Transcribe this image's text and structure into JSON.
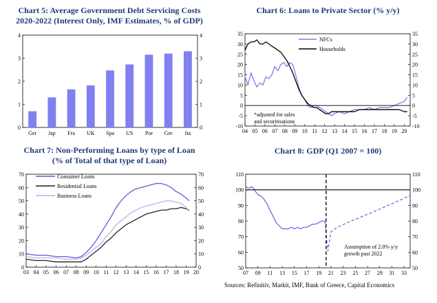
{
  "sources": "Sources: Refinitiv, Markit, IMF, Bank of Greece, Capital Economics",
  "chart_data": [
    {
      "id": "c5",
      "type": "bar",
      "title": "Chart 5: Average Government Debt Servicing Costs 2020-2022 (Interest Only, IMF Estimates, % of GDP)",
      "title_lines": [
        "Chart 5: Average Government Debt Servicing Costs",
        "2020-2022 (Interest Only, IMF Estimates, % of GDP)"
      ],
      "categories": [
        "Ger",
        "Jap",
        "Fra",
        "UK",
        "Spa",
        "US",
        "Por",
        "Gre",
        "Ita"
      ],
      "values": [
        0.7,
        1.3,
        1.65,
        1.82,
        2.47,
        2.73,
        3.15,
        3.2,
        3.3
      ],
      "ylim": [
        0,
        4
      ],
      "yticks": [
        0,
        1,
        2,
        3,
        4
      ],
      "color": "#8080f0"
    },
    {
      "id": "c6",
      "type": "line",
      "title": "Chart 6: Loans to Private Sector (% y/y)",
      "x_ticks": [
        "04",
        "05",
        "06",
        "07",
        "08",
        "09",
        "10",
        "11",
        "12",
        "13",
        "14",
        "15",
        "16",
        "17",
        "18",
        "19",
        "20"
      ],
      "xlim": [
        2004,
        2020.6
      ],
      "ylim": [
        -10,
        35
      ],
      "yticks": [
        -10,
        -5,
        0,
        5,
        10,
        15,
        20,
        25,
        30,
        35
      ],
      "legend": "top-right",
      "annotation": [
        "*adjusted for sales",
        "and securitisations"
      ],
      "series": [
        {
          "name": "NFCs",
          "color": "#7b7bf0",
          "x": [
            2004.0,
            2004.3,
            2004.6,
            2004.9,
            2005.2,
            2005.5,
            2005.8,
            2006.1,
            2006.4,
            2006.7,
            2007.0,
            2007.3,
            2007.6,
            2007.9,
            2008.2,
            2008.5,
            2008.8,
            2009.1,
            2009.4,
            2009.7,
            2010.0,
            2010.3,
            2010.6,
            2010.9,
            2011.2,
            2011.5,
            2011.8,
            2012.1,
            2012.4,
            2012.7,
            2013.0,
            2013.5,
            2014.0,
            2014.5,
            2015.0,
            2015.5,
            2016.0,
            2016.5,
            2017.0,
            2017.5,
            2018.0,
            2018.5,
            2019.0,
            2019.5,
            2020.0,
            2020.3
          ],
          "y": [
            14,
            10,
            16,
            12,
            9,
            11,
            10,
            14,
            13,
            15,
            19,
            17,
            20,
            21,
            19,
            21,
            20,
            15,
            9,
            5,
            3,
            0,
            -1,
            0,
            0,
            -1,
            -2,
            -3,
            -4,
            -5,
            -4,
            -3,
            -4,
            -3,
            -2,
            -2,
            -2,
            -1,
            -2,
            -1,
            -1,
            -1,
            0,
            1,
            2,
            4
          ]
        },
        {
          "name": "Households",
          "color": "#000000",
          "x": [
            2004.0,
            2004.3,
            2004.6,
            2004.9,
            2005.2,
            2005.5,
            2005.8,
            2006.1,
            2006.4,
            2006.7,
            2007.0,
            2007.3,
            2007.6,
            2007.9,
            2008.2,
            2008.5,
            2008.8,
            2009.1,
            2009.4,
            2009.7,
            2010.0,
            2010.3,
            2010.6,
            2010.9,
            2011.2,
            2011.5,
            2011.8,
            2012.1,
            2012.4,
            2012.7,
            2013.0,
            2013.5,
            2014.0,
            2014.5,
            2015.0,
            2015.5,
            2016.0,
            2016.5,
            2017.0,
            2017.5,
            2018.0,
            2018.5,
            2019.0,
            2019.5,
            2020.0,
            2020.3
          ],
          "y": [
            27,
            30,
            31,
            31,
            32,
            30,
            30,
            31,
            30,
            29,
            28,
            27,
            26,
            24,
            22,
            19,
            16,
            12,
            8,
            5,
            3,
            1,
            0,
            -1,
            -1,
            -2,
            -3,
            -4,
            -4,
            -3,
            -3,
            -3,
            -3,
            -3,
            -3,
            -2,
            -2,
            -2,
            -2,
            -2,
            -2,
            -2,
            -2,
            -2,
            -3,
            -3
          ]
        }
      ]
    },
    {
      "id": "c7",
      "type": "line",
      "title": "Chart 7: Non-Performing Loans by type of Loan (% of Total of that type of Loan)",
      "title_lines": [
        "Chart 7: Non-Performing Loans by type of Loan",
        "(% of Total of that type of Loan)"
      ],
      "x_ticks": [
        "03",
        "04",
        "05",
        "06",
        "07",
        "08",
        "09",
        "10",
        "11",
        "12",
        "13",
        "14",
        "15",
        "16",
        "17",
        "18",
        "19",
        "20"
      ],
      "xlim": [
        2003,
        2020
      ],
      "ylim": [
        0,
        70
      ],
      "yticks": [
        0,
        10,
        20,
        30,
        40,
        50,
        60,
        70
      ],
      "legend": "top-left",
      "series": [
        {
          "name": "Consumer Loans",
          "color": "#5c5cd6",
          "x": [
            2003,
            2004,
            2005,
            2006,
            2007,
            2008,
            2008.5,
            2009,
            2009.5,
            2010,
            2010.5,
            2011,
            2011.5,
            2012,
            2012.5,
            2013,
            2013.5,
            2014,
            2014.5,
            2015,
            2015.5,
            2016,
            2016.5,
            2017,
            2017.5,
            2018,
            2018.5,
            2019,
            2019.3
          ],
          "y": [
            10,
            9,
            9,
            8,
            8,
            7,
            8,
            11,
            15,
            20,
            26,
            32,
            38,
            45,
            50,
            54,
            57,
            59,
            60,
            61,
            62,
            63,
            63,
            62,
            60,
            57,
            55,
            52,
            50
          ]
        },
        {
          "name": "Residential Loans",
          "color": "#222222",
          "x": [
            2003,
            2004,
            2005,
            2006,
            2007,
            2008,
            2008.5,
            2009,
            2009.5,
            2010,
            2010.5,
            2011,
            2011.5,
            2012,
            2012.5,
            2013,
            2013.5,
            2014,
            2014.5,
            2015,
            2015.5,
            2016,
            2016.5,
            2017,
            2017.5,
            2018,
            2018.5,
            2019,
            2019.3
          ],
          "y": [
            6,
            5,
            5,
            4,
            4,
            4,
            4,
            6,
            9,
            12,
            15,
            19,
            22,
            26,
            29,
            32,
            34,
            36,
            38,
            40,
            41,
            42,
            43,
            43,
            44,
            44,
            45,
            44,
            43
          ]
        },
        {
          "name": "Business Loans",
          "color": "#b4b4ee",
          "x": [
            2003,
            2004,
            2005,
            2006,
            2007,
            2008,
            2008.5,
            2009,
            2009.5,
            2010,
            2010.5,
            2011,
            2011.5,
            2012,
            2012.5,
            2013,
            2013.5,
            2014,
            2014.5,
            2015,
            2015.5,
            2016,
            2016.5,
            2017,
            2017.5,
            2018,
            2018.5,
            2019,
            2019.3
          ],
          "y": [
            8,
            7,
            7,
            7,
            6,
            6,
            7,
            9,
            12,
            15,
            18,
            23,
            27,
            32,
            35,
            38,
            41,
            43,
            45,
            46,
            47,
            48,
            49,
            50,
            50,
            49,
            48,
            45,
            42
          ]
        }
      ]
    },
    {
      "id": "c8",
      "type": "line",
      "title": "Chart 8: GDP (Q1 2007 = 100)",
      "x_ticks": [
        "07",
        "09",
        "11",
        "13",
        "15",
        "17",
        "19",
        "21",
        "23",
        "25",
        "27",
        "29",
        "31",
        "33"
      ],
      "xlim": [
        2007,
        2034
      ],
      "ylim": [
        50,
        110
      ],
      "yticks": [
        50,
        60,
        70,
        80,
        90,
        100,
        110
      ],
      "reference_line": 100,
      "vline_x": 2020.2,
      "annotation": [
        "Assumption of 2.0% y/y",
        "growth past 2022"
      ],
      "series": [
        {
          "name": "GDP",
          "color": "#6a6ae0",
          "x": [
            2007.0,
            2007.5,
            2008.0,
            2008.3,
            2008.6,
            2009.0,
            2009.5,
            2010.0,
            2010.5,
            2011.0,
            2011.5,
            2012.0,
            2012.5,
            2013.0,
            2013.5,
            2014.0,
            2014.5,
            2015.0,
            2015.5,
            2016.0,
            2016.5,
            2017.0,
            2017.5,
            2018.0,
            2018.5,
            2019.0,
            2019.5,
            2020.0
          ],
          "y": [
            102,
            101,
            102,
            101,
            99,
            97,
            96,
            94,
            91,
            87,
            83,
            79,
            77,
            75,
            75,
            75,
            76,
            75,
            76,
            75,
            76,
            76,
            77,
            78,
            78,
            79,
            80,
            80
          ]
        },
        {
          "name": "Projection",
          "color": "#6a6ae0",
          "dashed": true,
          "x": [
            2020.0,
            2020.25,
            2020.5,
            2020.75,
            2021.0,
            2022.0,
            2024.0,
            2026.0,
            2028.0,
            2030.0,
            2032.0,
            2034.0
          ],
          "y": [
            80,
            70,
            61,
            67,
            73,
            76,
            79.5,
            82.7,
            86.0,
            89.4,
            92.8,
            96.4
          ]
        }
      ]
    }
  ]
}
